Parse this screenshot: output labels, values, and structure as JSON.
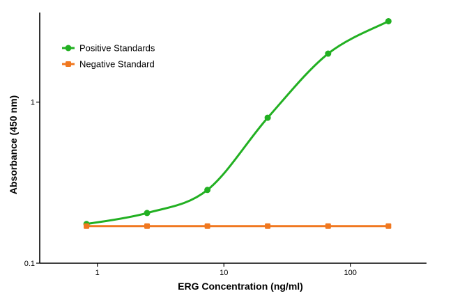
{
  "chart_data": {
    "type": "scatter",
    "xlabel": "ERG Concentration (ng/ml)",
    "ylabel": "Absorbance (450 nm)",
    "x_scale": "log",
    "y_scale": "log",
    "xlim": [
      0.35,
      400
    ],
    "ylim": [
      0.1,
      3.6
    ],
    "x_ticks": [
      {
        "value": 1,
        "label": "1"
      },
      {
        "value": 10,
        "label": "10"
      },
      {
        "value": 100,
        "label": "100"
      }
    ],
    "y_ticks": [
      {
        "value": 0.1,
        "label": "0.1"
      },
      {
        "value": 1,
        "label": "1"
      }
    ],
    "grid": false,
    "legend_position": "top-left",
    "series": [
      {
        "name": "Positive Standards",
        "color": "#22b022",
        "marker": "circle",
        "x": [
          0.82,
          2.47,
          7.41,
          22.2,
          66.7,
          200
        ],
        "y": [
          0.175,
          0.205,
          0.285,
          0.8,
          2.0,
          3.18
        ],
        "fit_curve": true
      },
      {
        "name": "Negative Standard",
        "color": "#f07820",
        "marker": "square",
        "x": [
          0.82,
          2.47,
          7.41,
          22.2,
          66.7,
          200
        ],
        "y": [
          0.17,
          0.17,
          0.17,
          0.17,
          0.17,
          0.17
        ],
        "fit_curve": false
      }
    ]
  }
}
